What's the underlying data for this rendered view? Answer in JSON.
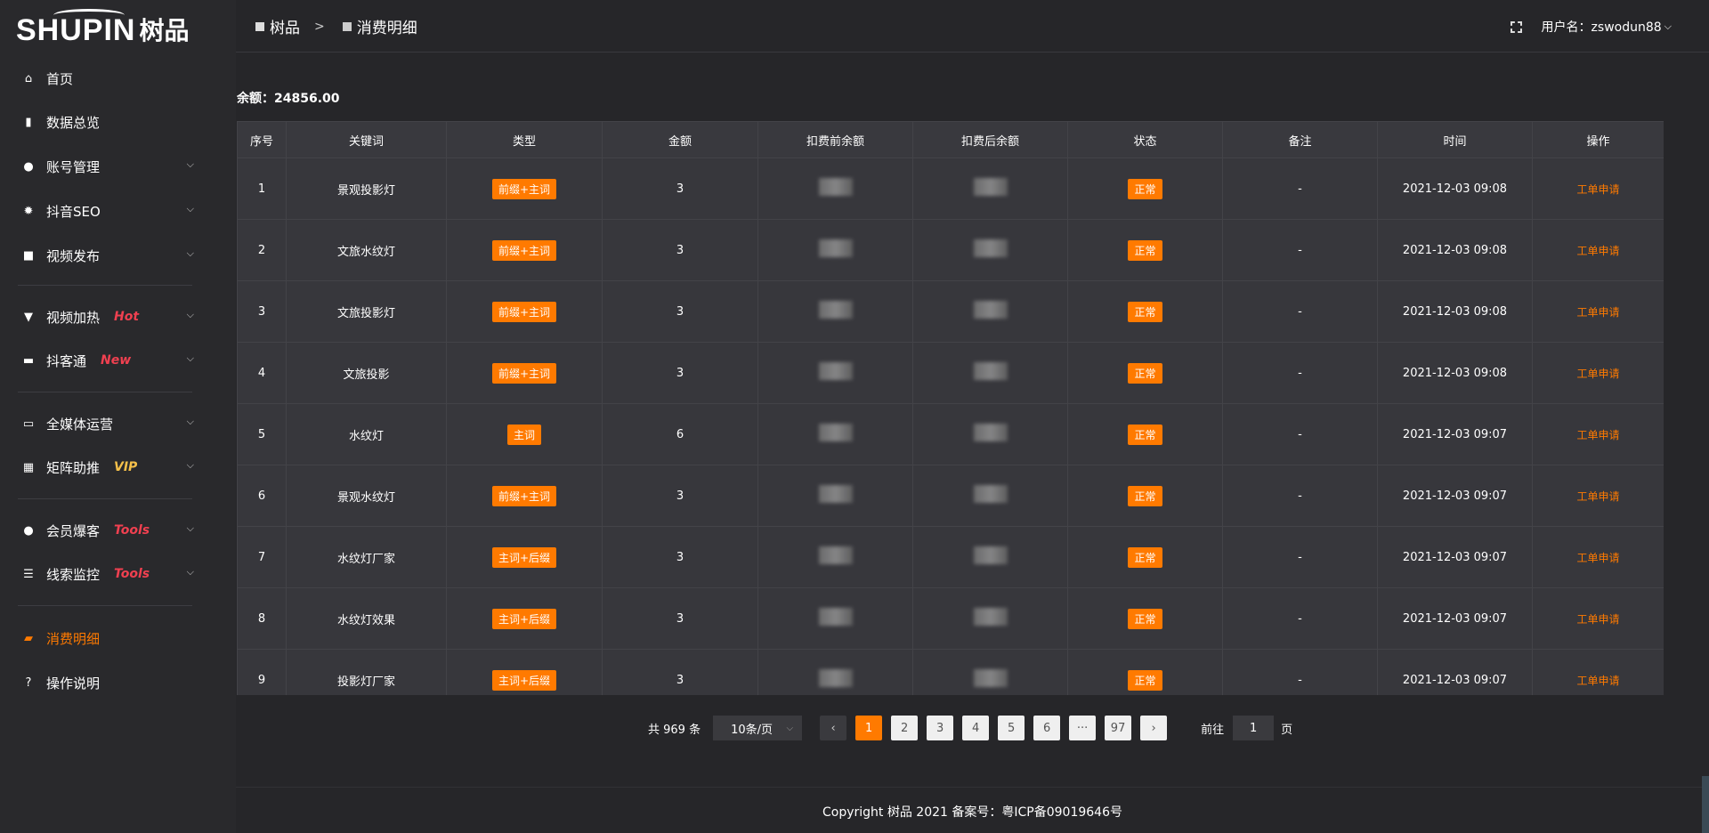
{
  "logo": {
    "en": "SHUPIN",
    "cn": "树品"
  },
  "breadcrumb": [
    "树品",
    "消费明细"
  ],
  "breadcrumb_sep": ">",
  "user": {
    "label": "用户名：zswodun88"
  },
  "balance": "余额：24856.00",
  "sidebar": {
    "items": [
      {
        "label": "首页",
        "icon": "home-icon",
        "glyph": "⌂",
        "tag": "",
        "chev": false
      },
      {
        "label": "数据总览",
        "icon": "bar-chart-icon",
        "glyph": "▮",
        "tag": "",
        "chev": false
      },
      {
        "label": "账号管理",
        "icon": "user-icon",
        "glyph": "●",
        "tag": "",
        "chev": true
      },
      {
        "label": "抖音SEO",
        "icon": "gear-icon",
        "glyph": "✹",
        "tag": "",
        "chev": true
      },
      {
        "label": "视频发布",
        "icon": "video-icon",
        "glyph": "■",
        "tag": "",
        "chev": true
      },
      {
        "label": "视频加热",
        "icon": "billboard-icon",
        "glyph": "▼",
        "tag": "Hot",
        "tagColor": "#f04050",
        "chev": true
      },
      {
        "label": "抖客通",
        "icon": "chat-icon",
        "glyph": "▬",
        "tag": "New",
        "tagColor": "#f04050",
        "chev": true
      },
      {
        "label": "全媒体运营",
        "icon": "monitor-icon",
        "glyph": "▭",
        "tag": "",
        "chev": true
      },
      {
        "label": "矩阵助推",
        "icon": "grid-icon",
        "glyph": "▦",
        "tag": "VIP",
        "tagColor": "#f5c04a",
        "chev": true
      },
      {
        "label": "会员爆客",
        "icon": "user-icon",
        "glyph": "●",
        "tag": "Tools",
        "tagColor": "#f04050",
        "chev": true
      },
      {
        "label": "线索监控",
        "icon": "sliders-icon",
        "glyph": "☰",
        "tag": "Tools",
        "tagColor": "#f04050",
        "chev": true
      },
      {
        "label": "消费明细",
        "icon": "wallet-icon",
        "glyph": "▰",
        "tag": "",
        "chev": false,
        "active": true
      },
      {
        "label": "操作说明",
        "icon": "help-icon",
        "glyph": "?",
        "tag": "",
        "chev": false
      }
    ]
  },
  "table": {
    "columns": [
      "序号",
      "关键词",
      "类型",
      "金额",
      "扣费前余额",
      "扣费后余额",
      "状态",
      "备注",
      "时间",
      "操作"
    ],
    "rows": [
      {
        "no": "1",
        "kw": "景观投影灯",
        "type": "前缀+主词",
        "amt": "3",
        "status": "正常",
        "note": "-",
        "time": "2021-12-03 09:08",
        "op": "工单申请"
      },
      {
        "no": "2",
        "kw": "文旅水纹灯",
        "type": "前缀+主词",
        "amt": "3",
        "status": "正常",
        "note": "-",
        "time": "2021-12-03 09:08",
        "op": "工单申请"
      },
      {
        "no": "3",
        "kw": "文旅投影灯",
        "type": "前缀+主词",
        "amt": "3",
        "status": "正常",
        "note": "-",
        "time": "2021-12-03 09:08",
        "op": "工单申请"
      },
      {
        "no": "4",
        "kw": "文旅投影",
        "type": "前缀+主词",
        "amt": "3",
        "status": "正常",
        "note": "-",
        "time": "2021-12-03 09:08",
        "op": "工单申请"
      },
      {
        "no": "5",
        "kw": "水纹灯",
        "type": "主词",
        "amt": "6",
        "status": "正常",
        "note": "-",
        "time": "2021-12-03 09:07",
        "op": "工单申请"
      },
      {
        "no": "6",
        "kw": "景观水纹灯",
        "type": "前缀+主词",
        "amt": "3",
        "status": "正常",
        "note": "-",
        "time": "2021-12-03 09:07",
        "op": "工单申请"
      },
      {
        "no": "7",
        "kw": "水纹灯厂家",
        "type": "主词+后缀",
        "amt": "3",
        "status": "正常",
        "note": "-",
        "time": "2021-12-03 09:07",
        "op": "工单申请"
      },
      {
        "no": "8",
        "kw": "水纹灯效果",
        "type": "主词+后缀",
        "amt": "3",
        "status": "正常",
        "note": "-",
        "time": "2021-12-03 09:07",
        "op": "工单申请"
      },
      {
        "no": "9",
        "kw": "投影灯厂家",
        "type": "主词+后缀",
        "amt": "3",
        "status": "正常",
        "note": "-",
        "time": "2021-12-03 09:07",
        "op": "工单申请"
      }
    ]
  },
  "pagination": {
    "total": "共 969 条",
    "page_size": "10条/页",
    "pages": [
      "1",
      "2",
      "3",
      "4",
      "5",
      "6",
      "···",
      "97"
    ],
    "current": "1",
    "goto_label": "前往",
    "goto_value": "1",
    "page_suffix": "页",
    "prev": "‹",
    "next": "›"
  },
  "footer": "Copyright 树品 2021 备案号：粤ICP备09019646号",
  "colors": {
    "accent": "#ff7a00",
    "background": "#262629",
    "table": "#37373c"
  }
}
